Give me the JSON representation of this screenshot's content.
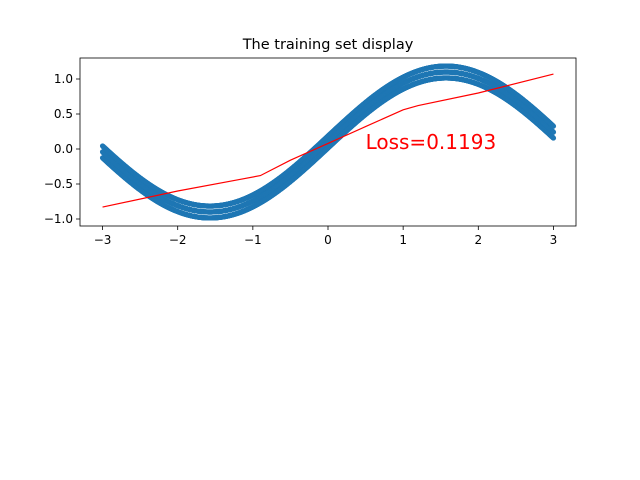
{
  "chart_data": {
    "type": "scatter",
    "title": "The training set display",
    "xlabel": "",
    "ylabel": "",
    "xlim": [
      -3.3,
      3.3
    ],
    "ylim": [
      -1.1,
      1.3
    ],
    "xticks": [
      -3,
      -2,
      -1,
      0,
      1,
      2,
      3
    ],
    "xtick_labels": [
      "−3",
      "−2",
      "−1",
      "0",
      "1",
      "2",
      "3"
    ],
    "yticks": [
      -1.0,
      -0.5,
      0.0,
      0.5,
      1.0
    ],
    "ytick_labels": [
      "−1.0",
      "−0.5",
      "0.0",
      "0.5",
      "1.0"
    ],
    "grid": false,
    "annotation": {
      "text": "Loss=0.1193",
      "x": 0.5,
      "y": 0.0,
      "color": "#ff0000"
    },
    "series": [
      {
        "kind": "scatter",
        "color": "#1f77b4",
        "x_range": [
          -3,
          3
        ],
        "center_function": "sin(x) + 0.1",
        "band_half_width": 0.1
      },
      {
        "kind": "line",
        "color": "#ff0000",
        "x": [
          -3.0,
          -2.0,
          -1.2,
          -0.9,
          -0.5,
          0.0,
          0.5,
          1.0,
          1.2,
          2.0,
          3.0
        ],
        "y": [
          -0.83,
          -0.6,
          -0.44,
          -0.38,
          -0.16,
          0.08,
          0.32,
          0.56,
          0.62,
          0.8,
          1.07
        ]
      }
    ]
  }
}
